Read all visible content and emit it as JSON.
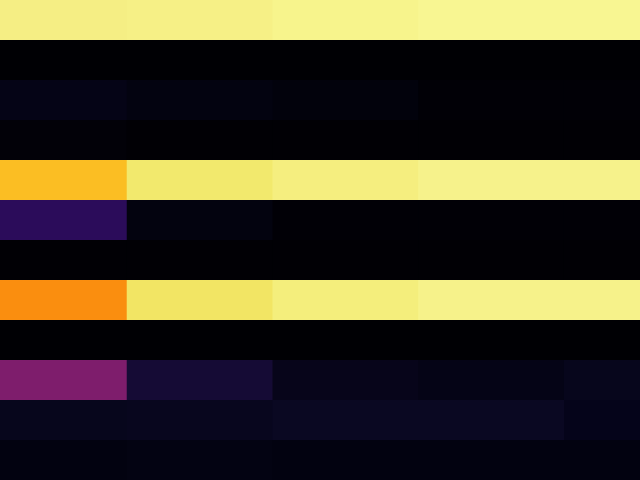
{
  "chart_data": {
    "type": "heatmap",
    "title": "",
    "xlabel": "",
    "ylabel": "",
    "colormap": "inferno",
    "grid": false,
    "legend": "none",
    "rows": [
      {
        "cells": [
          {
            "span": 1.0,
            "color": "#f5ee84"
          },
          {
            "span": 1.15,
            "color": "#f6f086"
          },
          {
            "span": 1.15,
            "color": "#f7f48c"
          },
          {
            "span": 1.15,
            "color": "#f8f692"
          },
          {
            "span": 0.6,
            "color": "#f8f692"
          }
        ]
      },
      {
        "cells": [
          {
            "span": 1.0,
            "color": "#000004"
          },
          {
            "span": 1.15,
            "color": "#000004"
          },
          {
            "span": 1.15,
            "color": "#000004"
          },
          {
            "span": 1.15,
            "color": "#000004"
          },
          {
            "span": 0.6,
            "color": "#000004"
          }
        ]
      },
      {
        "cells": [
          {
            "span": 1.0,
            "color": "#050416"
          },
          {
            "span": 1.15,
            "color": "#030310"
          },
          {
            "span": 1.15,
            "color": "#02020c"
          },
          {
            "span": 1.15,
            "color": "#010006"
          },
          {
            "span": 0.6,
            "color": "#010006"
          }
        ]
      },
      {
        "cells": [
          {
            "span": 1.0,
            "color": "#020108"
          },
          {
            "span": 1.15,
            "color": "#010005"
          },
          {
            "span": 1.15,
            "color": "#010005"
          },
          {
            "span": 1.15,
            "color": "#010005"
          },
          {
            "span": 0.6,
            "color": "#010005"
          }
        ]
      },
      {
        "cells": [
          {
            "span": 1.0,
            "color": "#fbbe23"
          },
          {
            "span": 1.15,
            "color": "#f2e96d"
          },
          {
            "span": 1.15,
            "color": "#f5ee7f"
          },
          {
            "span": 1.15,
            "color": "#f6f28b"
          },
          {
            "span": 0.6,
            "color": "#f6f28b"
          }
        ]
      },
      {
        "cells": [
          {
            "span": 1.0,
            "color": "#2b0c5a"
          },
          {
            "span": 1.15,
            "color": "#03030f"
          },
          {
            "span": 1.15,
            "color": "#010006"
          },
          {
            "span": 1.15,
            "color": "#010006"
          },
          {
            "span": 0.6,
            "color": "#010006"
          }
        ]
      },
      {
        "cells": [
          {
            "span": 1.0,
            "color": "#010005"
          },
          {
            "span": 1.15,
            "color": "#010005"
          },
          {
            "span": 1.15,
            "color": "#010005"
          },
          {
            "span": 1.15,
            "color": "#010005"
          },
          {
            "span": 0.6,
            "color": "#010005"
          }
        ]
      },
      {
        "cells": [
          {
            "span": 1.0,
            "color": "#fa8e0f"
          },
          {
            "span": 1.15,
            "color": "#f2e564"
          },
          {
            "span": 1.15,
            "color": "#f4ee7c"
          },
          {
            "span": 1.15,
            "color": "#f6f28a"
          },
          {
            "span": 0.6,
            "color": "#f6f28a"
          }
        ]
      },
      {
        "cells": [
          {
            "span": 1.0,
            "color": "#000004"
          },
          {
            "span": 1.15,
            "color": "#000004"
          },
          {
            "span": 1.15,
            "color": "#000004"
          },
          {
            "span": 1.15,
            "color": "#000004"
          },
          {
            "span": 0.6,
            "color": "#000004"
          }
        ]
      },
      {
        "cells": [
          {
            "span": 1.0,
            "color": "#7e1d6c"
          },
          {
            "span": 1.15,
            "color": "#150b35"
          },
          {
            "span": 1.15,
            "color": "#07051a"
          },
          {
            "span": 1.15,
            "color": "#050416"
          },
          {
            "span": 0.6,
            "color": "#07061c"
          }
        ]
      },
      {
        "cells": [
          {
            "span": 1.0,
            "color": "#07061c"
          },
          {
            "span": 1.15,
            "color": "#08061e"
          },
          {
            "span": 1.15,
            "color": "#0a0822"
          },
          {
            "span": 1.15,
            "color": "#0a0822"
          },
          {
            "span": 0.6,
            "color": "#05041a"
          }
        ]
      },
      {
        "cells": [
          {
            "span": 1.0,
            "color": "#020210"
          },
          {
            "span": 1.15,
            "color": "#030312"
          },
          {
            "span": 1.15,
            "color": "#020210"
          },
          {
            "span": 1.15,
            "color": "#020210"
          },
          {
            "span": 0.6,
            "color": "#020210"
          }
        ]
      }
    ]
  }
}
